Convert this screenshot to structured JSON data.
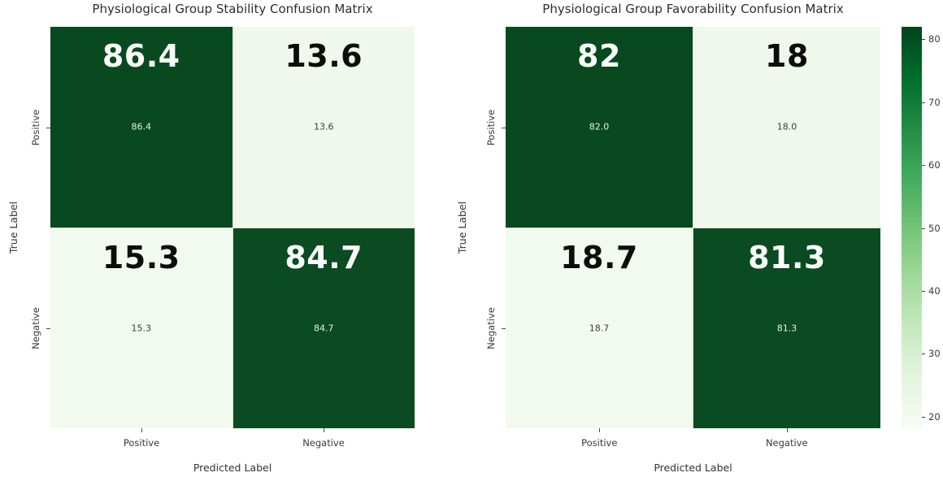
{
  "figure": {
    "background": "#ffffff"
  },
  "matrices": [
    {
      "title": "Physiological Group Stability Confusion Matrix",
      "xlabel": "Predicted Label",
      "ylabel": "True Label",
      "xticks": [
        "Positive",
        "Negative"
      ],
      "yticks": [
        "Positive",
        "Negative"
      ],
      "cells": [
        {
          "big": "86.4",
          "small": "86.4",
          "bg": "#09491f",
          "big_fg": "#fbfdfb",
          "small_fg": "#e7f2e5"
        },
        {
          "big": "13.6",
          "small": "13.6",
          "bg": "#f0f7ec",
          "big_fg": "#0d0d0d",
          "small_fg": "#3d3d3d"
        },
        {
          "big": "15.3",
          "small": "15.3",
          "bg": "#f2f9ee",
          "big_fg": "#0d0d0d",
          "small_fg": "#3d3d3d"
        },
        {
          "big": "84.7",
          "small": "84.7",
          "bg": "#0a4b21",
          "big_fg": "#fbfdfb",
          "small_fg": "#e7f2e5"
        }
      ]
    },
    {
      "title": "Physiological Group Favorability Confusion Matrix",
      "xlabel": "Predicted Label",
      "ylabel": "True Label",
      "xticks": [
        "Positive",
        "Negative"
      ],
      "yticks": [
        "Positive",
        "Negative"
      ],
      "cells": [
        {
          "big": "82",
          "small": "82.0",
          "bg": "#09491f",
          "big_fg": "#fbfdfb",
          "small_fg": "#e7f2e5"
        },
        {
          "big": "18",
          "small": "18.0",
          "bg": "#f0f7ec",
          "big_fg": "#0d0d0d",
          "small_fg": "#3d3d3d"
        },
        {
          "big": "18.7",
          "small": "18.7",
          "bg": "#f2f9ee",
          "big_fg": "#0d0d0d",
          "small_fg": "#3d3d3d"
        },
        {
          "big": "81.3",
          "small": "81.3",
          "bg": "#0a4b21",
          "big_fg": "#fbfdfb",
          "small_fg": "#e7f2e5"
        }
      ]
    }
  ],
  "colorbar": {
    "vmin": 18,
    "vmax": 82,
    "tick_values": [
      80,
      70,
      60,
      50,
      40,
      30,
      20
    ],
    "tick_labels": [
      "80",
      "70",
      "60",
      "50",
      "40",
      "30",
      "20"
    ],
    "gradient_stops_top_to_bottom": [
      "#00441b",
      "#006d2c",
      "#238b45",
      "#41ab5d",
      "#74c476",
      "#a1d99b",
      "#c7e9c0",
      "#e5f5e0",
      "#f7fcf5"
    ],
    "colormap": "Greens"
  },
  "chart_data": [
    {
      "type": "heatmap",
      "title": "Physiological Group Stability Confusion Matrix",
      "xlabel": "Predicted Label",
      "ylabel": "True Label",
      "x_categories": [
        "Positive",
        "Negative"
      ],
      "y_categories": [
        "Positive",
        "Negative"
      ],
      "values": [
        [
          86.4,
          13.6
        ],
        [
          15.3,
          84.7
        ]
      ],
      "annotations_large": [
        [
          "86.4",
          "13.6"
        ],
        [
          "15.3",
          "84.7"
        ]
      ],
      "annotations_small": [
        [
          "86.4",
          "13.6"
        ],
        [
          "15.3",
          "84.7"
        ]
      ],
      "colormap": "Greens",
      "legend_position": "none"
    },
    {
      "type": "heatmap",
      "title": "Physiological Group Favorability Confusion Matrix",
      "xlabel": "Predicted Label",
      "ylabel": "True Label",
      "x_categories": [
        "Positive",
        "Negative"
      ],
      "y_categories": [
        "Positive",
        "Negative"
      ],
      "values": [
        [
          82.0,
          18.0
        ],
        [
          18.7,
          81.3
        ]
      ],
      "annotations_large": [
        [
          "82",
          "18"
        ],
        [
          "18.7",
          "81.3"
        ]
      ],
      "annotations_small": [
        [
          "82.0",
          "18.0"
        ],
        [
          "18.7",
          "81.3"
        ]
      ],
      "colormap": "Greens",
      "colorbar_range": [
        18,
        82
      ],
      "colorbar_ticks": [
        80,
        70,
        60,
        50,
        40,
        30,
        20
      ],
      "legend_position": "colorbar-right"
    }
  ]
}
